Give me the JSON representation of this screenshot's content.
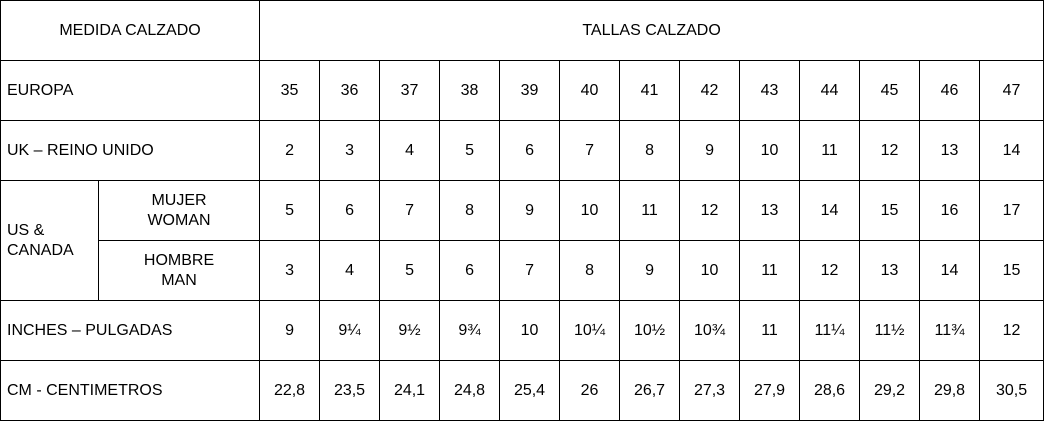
{
  "header": {
    "left": "MEDIDA CALZADO",
    "right": "TALLAS CALZADO"
  },
  "rows": {
    "europa": {
      "label": "EUROPA",
      "values": [
        "35",
        "36",
        "37",
        "38",
        "39",
        "40",
        "41",
        "42",
        "43",
        "44",
        "45",
        "46",
        "47"
      ]
    },
    "uk": {
      "label": "UK – REINO UNIDO",
      "values": [
        "2",
        "3",
        "4",
        "5",
        "6",
        "7",
        "8",
        "9",
        "10",
        "11",
        "12",
        "13",
        "14"
      ]
    },
    "us_canada": {
      "label_line1": "US &",
      "label_line2": "CANADA",
      "women": {
        "label_line1": "MUJER",
        "label_line2": "WOMAN",
        "values": [
          "5",
          "6",
          "7",
          "8",
          "9",
          "10",
          "11",
          "12",
          "13",
          "14",
          "15",
          "16",
          "17"
        ]
      },
      "men": {
        "label_line1": "HOMBRE",
        "label_line2": "MAN",
        "values": [
          "3",
          "4",
          "5",
          "6",
          "7",
          "8",
          "9",
          "10",
          "11",
          "12",
          "13",
          "14",
          "15"
        ]
      }
    },
    "inches": {
      "label": "INCHES – PULGADAS",
      "values": [
        "9",
        "9¼",
        "9½",
        "9¾",
        "10",
        "10¼",
        "10½",
        "10¾",
        "11",
        "11¼",
        "11½",
        "11¾",
        "12"
      ]
    },
    "cm": {
      "label": "CM - CENTIMETROS",
      "values": [
        "22,8",
        "23,5",
        "24,1",
        "24,8",
        "25,4",
        "26",
        "26,7",
        "27,3",
        "27,9",
        "28,6",
        "29,2",
        "29,8",
        "30,5"
      ]
    }
  }
}
